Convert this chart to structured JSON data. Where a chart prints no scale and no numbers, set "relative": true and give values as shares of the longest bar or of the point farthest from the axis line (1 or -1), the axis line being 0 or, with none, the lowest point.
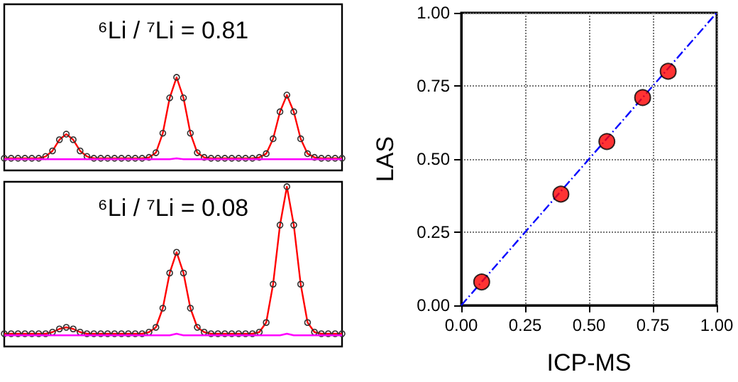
{
  "chart_data": [
    {
      "type": "line",
      "title": "⁶Li / ⁷Li = 0.81",
      "relative": true,
      "grid": false,
      "categories": [
        null,
        null,
        null,
        null,
        null,
        null,
        null,
        null,
        null,
        null,
        null,
        null,
        null,
        null,
        null,
        null,
        null,
        null,
        null,
        null,
        null,
        null,
        null,
        null,
        null,
        null,
        null,
        null,
        null,
        null,
        null,
        null,
        null,
        null,
        null,
        null,
        null,
        null,
        null,
        null,
        null,
        null,
        null,
        null,
        null,
        null,
        null,
        null,
        null,
        null
      ],
      "series": [
        {
          "color": "#ff00ff",
          "values": [
            0.12,
            0.12,
            0.12,
            0.12,
            0.12,
            0.12,
            0.12,
            0.12,
            0.12,
            0.12,
            0.12,
            0.12,
            0.12,
            0.12,
            0.12,
            0.12,
            0.12,
            0.12,
            0.12,
            0.12,
            0.12,
            0.12,
            0.12,
            0.12,
            0.12,
            0.13,
            0.12,
            0.12,
            0.12,
            0.12,
            0.12,
            0.12,
            0.12,
            0.12,
            0.12,
            0.12,
            0.12,
            0.12,
            0.12,
            0.12,
            0.12,
            0.12,
            0.12,
            0.12,
            0.12,
            0.12,
            0.12,
            0.12,
            0.12,
            0.12
          ]
        },
        {
          "color": "#ff0000",
          "marker": "circle",
          "values": [
            0.13,
            0.13,
            0.13,
            0.13,
            0.13,
            0.13,
            0.15,
            0.21,
            0.33,
            0.39,
            0.33,
            0.21,
            0.15,
            0.13,
            0.13,
            0.13,
            0.13,
            0.13,
            0.13,
            0.13,
            0.13,
            0.14,
            0.19,
            0.4,
            0.78,
            1,
            0.78,
            0.4,
            0.19,
            0.14,
            0.13,
            0.13,
            0.13,
            0.13,
            0.13,
            0.13,
            0.13,
            0.14,
            0.18,
            0.34,
            0.63,
            0.81,
            0.63,
            0.34,
            0.18,
            0.14,
            0.13,
            0.13,
            0.13,
            0.13
          ]
        }
      ]
    },
    {
      "type": "line",
      "title": "⁶Li / ⁷Li = 0.08",
      "relative": true,
      "grid": false,
      "categories": [
        null,
        null,
        null,
        null,
        null,
        null,
        null,
        null,
        null,
        null,
        null,
        null,
        null,
        null,
        null,
        null,
        null,
        null,
        null,
        null,
        null,
        null,
        null,
        null,
        null,
        null,
        null,
        null,
        null,
        null,
        null,
        null,
        null,
        null,
        null,
        null,
        null,
        null,
        null,
        null,
        null,
        null,
        null,
        null,
        null,
        null,
        null,
        null,
        null,
        null
      ],
      "series": [
        {
          "color": "#ff00ff",
          "values": [
            0.07,
            0.07,
            0.07,
            0.07,
            0.07,
            0.07,
            0.07,
            0.07,
            0.07,
            0.07,
            0.07,
            0.07,
            0.07,
            0.07,
            0.07,
            0.07,
            0.07,
            0.07,
            0.07,
            0.07,
            0.07,
            0.07,
            0.07,
            0.07,
            0.07,
            0.08,
            0.07,
            0.07,
            0.07,
            0.07,
            0.07,
            0.07,
            0.07,
            0.07,
            0.07,
            0.07,
            0.07,
            0.07,
            0.07,
            0.07,
            0.07,
            0.08,
            0.07,
            0.07,
            0.07,
            0.07,
            0.07,
            0.07,
            0.07,
            0.07
          ]
        },
        {
          "color": "#ff0000",
          "marker": "circle",
          "values": [
            0.08,
            0.08,
            0.08,
            0.08,
            0.08,
            0.08,
            0.08,
            0.09,
            0.11,
            0.12,
            0.11,
            0.09,
            0.08,
            0.08,
            0.08,
            0.08,
            0.08,
            0.08,
            0.08,
            0.08,
            0.08,
            0.09,
            0.12,
            0.24,
            0.46,
            0.59,
            0.46,
            0.24,
            0.12,
            0.09,
            0.08,
            0.08,
            0.08,
            0.08,
            0.08,
            0.08,
            0.08,
            0.09,
            0.15,
            0.39,
            0.76,
            1,
            0.76,
            0.39,
            0.15,
            0.09,
            0.08,
            0.08,
            0.08,
            0.08
          ]
        }
      ]
    },
    {
      "type": "scatter",
      "xlabel": "ICP-MS",
      "ylabel": "LAS",
      "grid": true,
      "xlim": [
        0,
        1
      ],
      "ylim": [
        0,
        1
      ],
      "xticks": [
        {
          "value": 0,
          "label": "0.00"
        },
        {
          "value": 0.25,
          "label": "0.25"
        },
        {
          "value": 0.5,
          "label": "0.50"
        },
        {
          "value": 0.75,
          "label": "0.75"
        },
        {
          "value": 1,
          "label": "1.00"
        }
      ],
      "yticks": [
        {
          "value": 0,
          "label": "0.00"
        },
        {
          "value": 0.25,
          "label": "0.25"
        },
        {
          "value": 0.5,
          "label": "0.50"
        },
        {
          "value": 0.75,
          "label": "0.75"
        },
        {
          "value": 1,
          "label": "1.00"
        }
      ],
      "series": [
        {
          "type": "line",
          "color": "#0000ff",
          "line_style": "dashed",
          "x": [
            0,
            1
          ],
          "values": [
            0,
            1
          ]
        },
        {
          "marker": "circle",
          "color": "#ff0000",
          "x": [
            0.08,
            0.39,
            0.57,
            0.71,
            0.81
          ],
          "values": [
            0.08,
            0.38,
            0.56,
            0.71,
            0.8
          ]
        }
      ]
    }
  ]
}
